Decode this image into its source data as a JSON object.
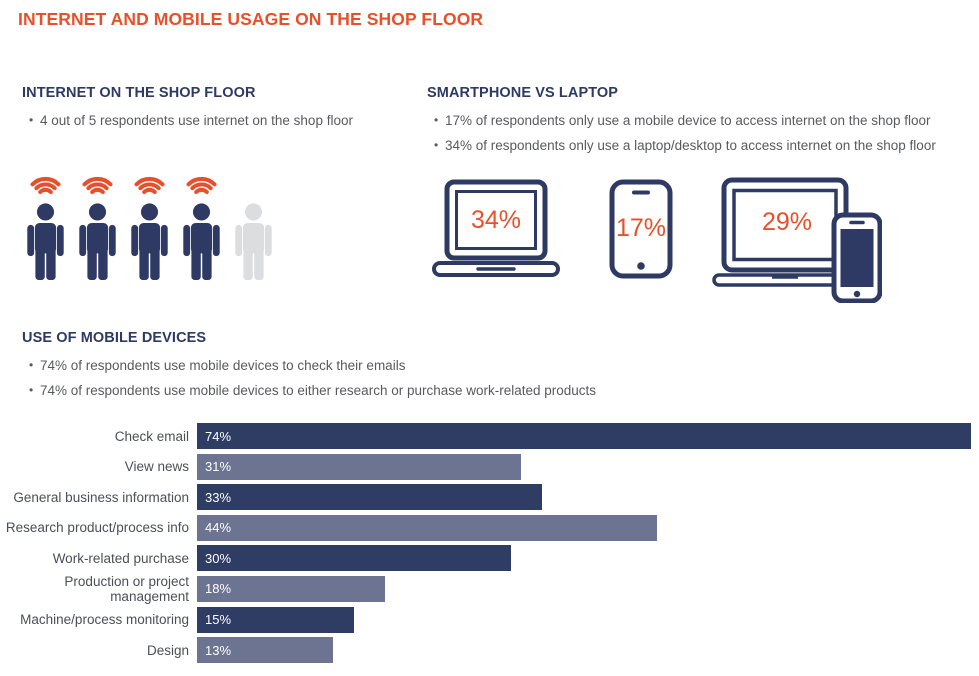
{
  "page": {
    "title": "INTERNET AND MOBILE USAGE ON THE SHOP FLOOR"
  },
  "colors": {
    "accent_orange": "#E8502B",
    "navy": "#2E3A63",
    "figure_gray": "#DCDDDE",
    "body_text_gray": "#595A5E"
  },
  "internet_section": {
    "heading": "INTERNET ON THE SHOP FLOOR",
    "bullet_char": "•",
    "bullets": [
      "4 out of 5 respondents use internet on the shop floor"
    ],
    "figures_total": 5,
    "figures_connected": 4
  },
  "smartphone_section": {
    "heading": "SMARTPHONE VS LAPTOP",
    "bullet_char": "•",
    "bullets": [
      "17% of respondents only use a mobile device to access internet on the shop floor",
      "34% of respondents only use a laptop/desktop to access internet on the shop floor"
    ],
    "devices": [
      {
        "icon": "laptop-icon",
        "label": "laptop/desktop only",
        "value": "34%"
      },
      {
        "icon": "smartphone-icon",
        "label": "mobile device only",
        "value": "17%"
      },
      {
        "icon": "laptop-and-smartphone-icon",
        "label": "both devices",
        "value": "29%"
      }
    ]
  },
  "mobile_section": {
    "heading": "USE OF MOBILE DEVICES",
    "bullet_char": "•",
    "bullets": [
      "74% of respondents use mobile devices to check their emails",
      "74% of respondents use mobile devices to either research or purchase work-related products"
    ]
  },
  "chart_data": {
    "type": "bar",
    "orientation": "horizontal",
    "title": "USE OF MOBILE DEVICES",
    "categories": [
      "Check email",
      "View news",
      "General business information",
      "Research product/process info",
      "Work-related purchase",
      "Production or project management",
      "Machine/process monitoring",
      "Design"
    ],
    "values": [
      74,
      31,
      33,
      44,
      30,
      18,
      15,
      13
    ],
    "value_labels": [
      "74%",
      "31%",
      "33%",
      "44%",
      "30%",
      "18%",
      "15%",
      "13%"
    ],
    "xlim": [
      0,
      74
    ],
    "grid": false,
    "legend": false,
    "bar_colors": [
      "#2F3C63",
      "#6C7491"
    ],
    "value_label_color": "#FFFFFF"
  }
}
